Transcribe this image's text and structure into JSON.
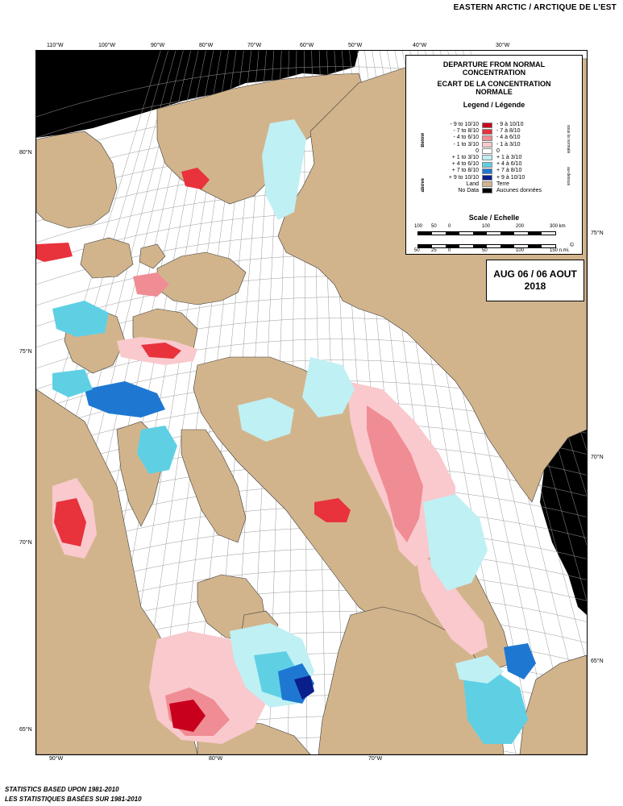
{
  "header": {
    "title": "EASTERN ARCTIC / ARCTIQUE DE L'EST"
  },
  "legend": {
    "title_en": [
      "DEPARTURE FROM NORMAL",
      "CONCENTRATION"
    ],
    "title_fr": [
      "ECART DE LA CONCENTRATION",
      "NORMALE"
    ],
    "legend_title": "Legend / Légende",
    "side_below": "Below",
    "side_above": "above",
    "side_right_top": "sous la normale",
    "side_right_bottom": "au-dessus",
    "rows": [
      {
        "en": "- 9 to 10/10",
        "fr": "- 9 à 10/10",
        "color": "#c8001e"
      },
      {
        "en": "- 7 to 8/10",
        "fr": "- 7 à 8/10",
        "color": "#e8323c"
      },
      {
        "en": "- 4 to 6/10",
        "fr": "- 4 à 6/10",
        "color": "#f08c94"
      },
      {
        "en": "- 1 to 3/10",
        "fr": "- 1 à 3/10",
        "color": "#f9c9cd"
      },
      {
        "en": "0",
        "fr": "0",
        "color": "#ffffff"
      },
      {
        "en": "+ 1 to 3/10",
        "fr": "+ 1 à 3/10",
        "color": "#bff0f4"
      },
      {
        "en": "+ 4 to 6/10",
        "fr": "+ 4 à 6/10",
        "color": "#5fd0e4"
      },
      {
        "en": "+ 7 to 8/10",
        "fr": "+ 7 à 8/10",
        "color": "#1e78d2"
      },
      {
        "en": "+ 9 to 10/10",
        "fr": "+ 9 à 10/10",
        "color": "#0a1e8c"
      },
      {
        "en": "Land",
        "fr": "Terre",
        "color": "#d2b48c"
      },
      {
        "en": "No Data",
        "fr": "Aucunes données",
        "color": "#000000"
      }
    ],
    "scale_title": "Scale / Echelle",
    "scale_km": [
      "100",
      "50",
      "0",
      "100",
      "200",
      "300 km"
    ],
    "scale_nm": [
      "50",
      "25",
      "0",
      "50",
      "100",
      "150 n.mi."
    ],
    "copyright": "©"
  },
  "date": {
    "line1": "AUG 06 / 06 AOUT",
    "line2": "2018"
  },
  "graticule": {
    "top_lon": [
      "110°W",
      "100°W",
      "90°W",
      "80°W",
      "70°W",
      "60°W",
      "50°W",
      "40°W",
      "30°W"
    ],
    "bottom_lon": [
      "90°W",
      "80°W",
      "70°W"
    ],
    "left_lat": [
      "80°N",
      "75°N",
      "70°N",
      "65°N"
    ],
    "right_lat": [
      "75°N",
      "70°N",
      "65°N"
    ]
  },
  "footer": {
    "line1": "STATISTICS BASED UPON 1981-2010",
    "line2": "LES STATISTIQUES BASÉES SUR 1981-2010"
  },
  "colors": {
    "land": "#d2b48c",
    "nodata": "#000000",
    "water": "#ffffff",
    "grid": "#9a9a9a"
  }
}
